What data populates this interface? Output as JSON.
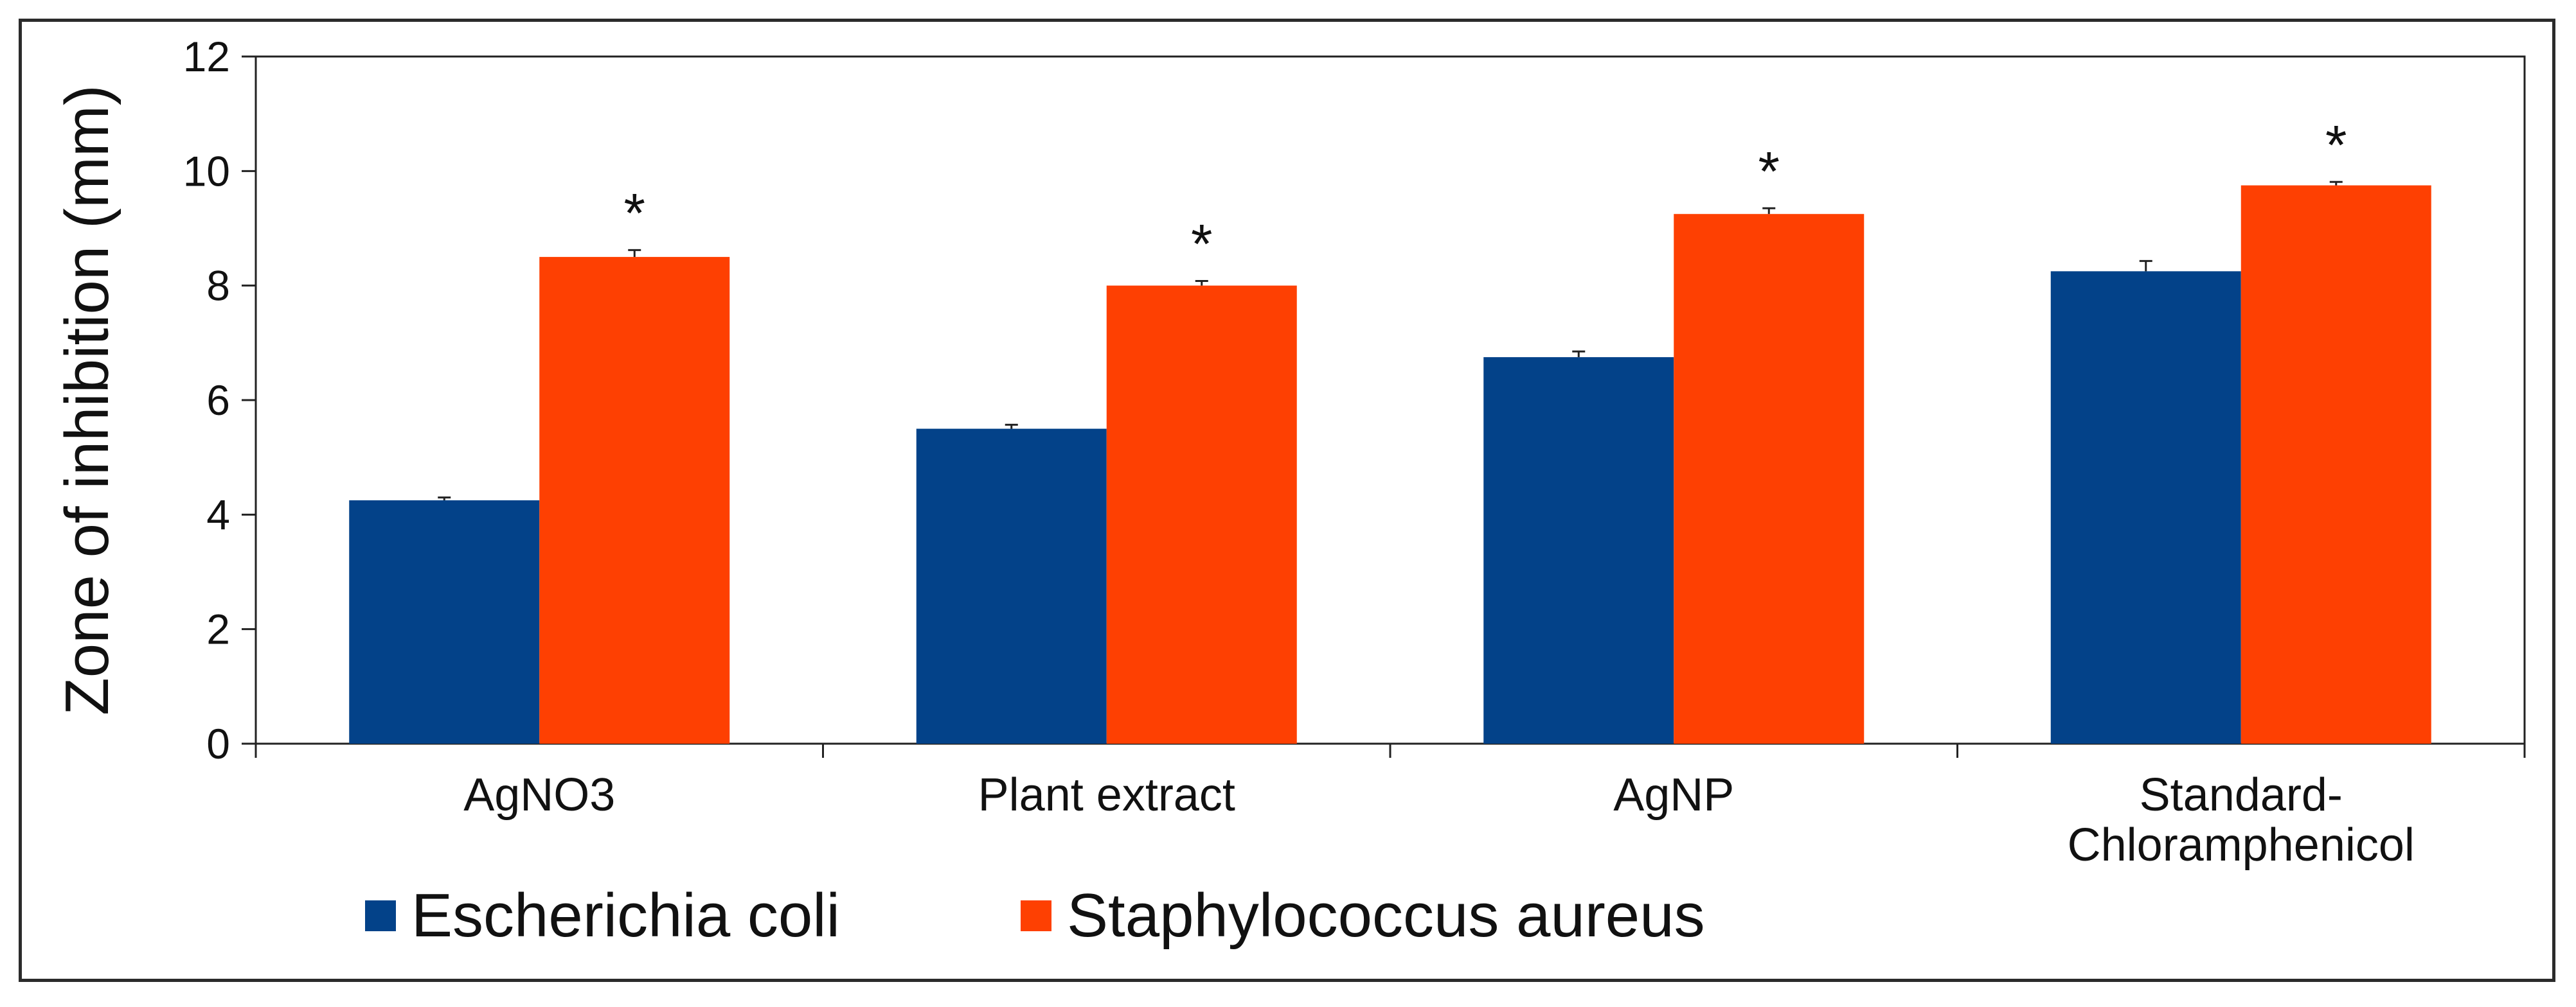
{
  "chart_data": {
    "type": "bar",
    "title": "",
    "xlabel": "",
    "ylabel": "Zone of inhibition (mm)",
    "ylim": [
      0,
      12
    ],
    "yticks": [
      "0",
      "2",
      "4",
      "6",
      "8",
      "10",
      "12"
    ],
    "categories": [
      [
        "AgNO3"
      ],
      [
        "Plant extract"
      ],
      [
        "AgNP"
      ],
      [
        "Standard-",
        "Chloramphenicol"
      ]
    ],
    "series": [
      {
        "name": "Escherichia coli",
        "color": "#034289",
        "values": [
          4.25,
          5.5,
          6.75,
          8.25
        ],
        "errors": [
          0.05,
          0.07,
          0.1,
          0.18
        ]
      },
      {
        "name": "Staphylococcus aureus",
        "color": "#fe4002",
        "values": [
          8.5,
          8.0,
          9.25,
          9.75
        ],
        "errors": [
          0.12,
          0.08,
          0.1,
          0.06
        ]
      }
    ],
    "annotations": [
      {
        "text": "*",
        "series": 1,
        "category": 0
      },
      {
        "text": "*",
        "series": 1,
        "category": 1
      },
      {
        "text": "*",
        "series": 1,
        "category": 2
      },
      {
        "text": "*",
        "series": 1,
        "category": 3
      }
    ],
    "grid": false,
    "legend_position": "bottom-left"
  }
}
